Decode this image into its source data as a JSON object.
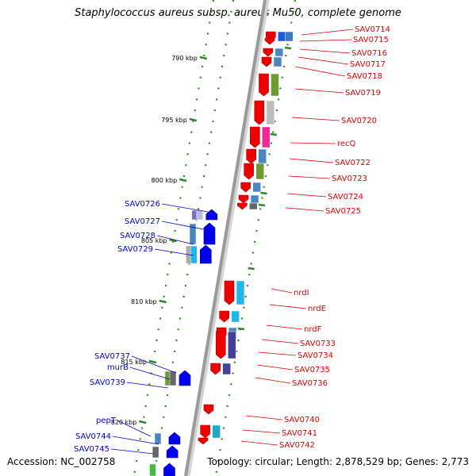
{
  "title": "Staphylococcus aureus subsp. aureus Mu50, complete genome",
  "accession": "Accession: NC_002758",
  "topology": "Topology: circular; Length: 2,878,529 bp; Genes: 2,773",
  "colors": {
    "backbone": "#9a9a9a",
    "forward_label": "#0000cc",
    "reverse_label": "#dd0000",
    "tick": "#2a8a2a"
  },
  "scale_ticks": [
    "790 kbp",
    "795 kbp",
    "800 kbp",
    "805 kbp",
    "810 kbp",
    "815 kbp",
    "820 kbp"
  ],
  "genes_forward": [
    "SAV0726",
    "SAV0727",
    "SAV0728",
    "SAV0729",
    "SAV0737",
    "murB",
    "SAV0739",
    "pepT",
    "SAV0744",
    "SAV0745"
  ],
  "genes_reverse": [
    "SAV0714",
    "SAV0715",
    "SAV0716",
    "SAV0717",
    "SAV0718",
    "SAV0719",
    "SAV0720",
    "recQ",
    "SAV0722",
    "SAV0723",
    "SAV0724",
    "SAV0725",
    "nrdI",
    "nrdE",
    "nrdF",
    "SAV0733",
    "SAV0734",
    "SAV0735",
    "SAV0736",
    "SAV0740",
    "SAV0741",
    "SAV0742"
  ]
}
